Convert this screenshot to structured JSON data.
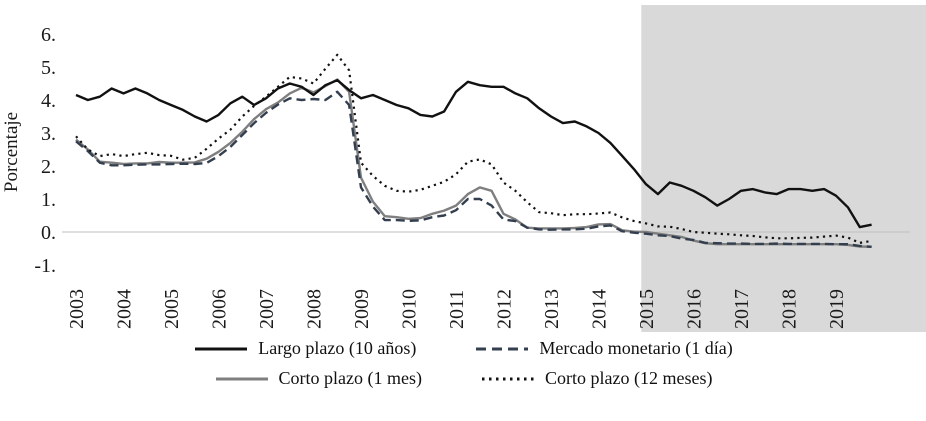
{
  "chart_data": {
    "type": "line",
    "title": "",
    "ylabel": "Porcentaje",
    "x_start": 2003,
    "x_step": 0.25,
    "ylim": [
      -1,
      6
    ],
    "grid": "zero-line-only",
    "y_ticks": [
      "6.",
      "5.",
      "4.",
      "3.",
      "2.",
      "1.",
      "0.",
      "-1."
    ],
    "y_tick_values": [
      6,
      5,
      4,
      3,
      2,
      1,
      0,
      -1
    ],
    "x_tick_labels": [
      "2003",
      "2004",
      "2005",
      "2006",
      "2007",
      "2008",
      "2009",
      "2010",
      "2011",
      "2012",
      "2013",
      "2014",
      "2015",
      "2016",
      "2017",
      "2018",
      "2019"
    ],
    "shaded_region": {
      "from": 2014.9,
      "to_edge": true,
      "color": "#d9d9d9"
    },
    "colors": {
      "gridline": "#bfbfbf",
      "text": "#1a1a1a"
    },
    "legend": {
      "position": "bottom",
      "rows": [
        [
          0,
          1
        ],
        [
          2,
          3
        ]
      ]
    },
    "series": [
      {
        "id": "largo-plazo-10a",
        "name": "Largo plazo (10 años)",
        "style": "solid",
        "color": "#111111",
        "values": [
          4.15,
          4.0,
          4.1,
          4.35,
          4.2,
          4.35,
          4.2,
          4.0,
          3.85,
          3.7,
          3.5,
          3.35,
          3.55,
          3.9,
          4.1,
          3.85,
          4.05,
          4.35,
          4.5,
          4.4,
          4.15,
          4.45,
          4.6,
          4.3,
          4.05,
          4.15,
          4.0,
          3.85,
          3.75,
          3.55,
          3.5,
          3.65,
          4.25,
          4.55,
          4.45,
          4.4,
          4.4,
          4.2,
          4.05,
          3.75,
          3.5,
          3.3,
          3.35,
          3.2,
          3.0,
          2.7,
          2.3,
          1.9,
          1.45,
          1.15,
          1.5,
          1.4,
          1.25,
          1.05,
          0.8,
          1.0,
          1.25,
          1.3,
          1.2,
          1.15,
          1.3,
          1.3,
          1.25,
          1.3,
          1.1,
          0.75,
          0.15,
          0.22
        ]
      },
      {
        "id": "mercado-monetario-1d",
        "name": "Mercado monetario (1 día)",
        "style": "dashed",
        "color": "#333f4f",
        "values": [
          2.75,
          2.45,
          2.1,
          2.02,
          2.02,
          2.04,
          2.05,
          2.05,
          2.06,
          2.07,
          2.06,
          2.09,
          2.3,
          2.58,
          2.94,
          3.3,
          3.61,
          3.86,
          4.05,
          4.0,
          4.03,
          4.0,
          4.25,
          3.85,
          1.35,
          0.77,
          0.36,
          0.36,
          0.34,
          0.35,
          0.45,
          0.5,
          0.66,
          1.0,
          1.0,
          0.8,
          0.38,
          0.33,
          0.13,
          0.08,
          0.07,
          0.08,
          0.08,
          0.1,
          0.17,
          0.2,
          0.02,
          -0.02,
          -0.05,
          -0.1,
          -0.12,
          -0.2,
          -0.24,
          -0.33,
          -0.34,
          -0.35,
          -0.35,
          -0.36,
          -0.36,
          -0.35,
          -0.36,
          -0.36,
          -0.36,
          -0.36,
          -0.37,
          -0.37,
          -0.42,
          -0.45
        ]
      },
      {
        "id": "corto-plazo-1m",
        "name": "Corto plazo (1 mes)",
        "style": "solid",
        "color": "#7f7f7f",
        "values": [
          2.8,
          2.5,
          2.13,
          2.1,
          2.06,
          2.08,
          2.08,
          2.12,
          2.1,
          2.1,
          2.11,
          2.22,
          2.43,
          2.7,
          3.04,
          3.42,
          3.72,
          3.92,
          4.2,
          4.37,
          4.23,
          4.42,
          4.62,
          4.25,
          1.65,
          0.92,
          0.48,
          0.45,
          0.4,
          0.42,
          0.55,
          0.65,
          0.8,
          1.15,
          1.35,
          1.25,
          0.55,
          0.38,
          0.13,
          0.11,
          0.11,
          0.11,
          0.12,
          0.15,
          0.23,
          0.24,
          0.05,
          0.01,
          0.0,
          -0.05,
          -0.1,
          -0.15,
          -0.26,
          -0.34,
          -0.37,
          -0.37,
          -0.37,
          -0.37,
          -0.37,
          -0.37,
          -0.37,
          -0.37,
          -0.37,
          -0.37,
          -0.37,
          -0.39,
          -0.44,
          -0.45
        ]
      },
      {
        "id": "corto-plazo-12m",
        "name": "Corto plazo (12 meses)",
        "style": "dotted",
        "color": "#111111",
        "values": [
          2.9,
          2.5,
          2.3,
          2.36,
          2.3,
          2.36,
          2.4,
          2.33,
          2.31,
          2.19,
          2.25,
          2.52,
          2.83,
          3.1,
          3.5,
          3.82,
          4.1,
          4.4,
          4.7,
          4.65,
          4.5,
          4.95,
          5.37,
          4.9,
          2.1,
          1.7,
          1.4,
          1.25,
          1.22,
          1.28,
          1.4,
          1.52,
          1.75,
          2.13,
          2.2,
          2.05,
          1.5,
          1.25,
          0.9,
          0.6,
          0.57,
          0.51,
          0.54,
          0.54,
          0.56,
          0.59,
          0.44,
          0.33,
          0.26,
          0.17,
          0.16,
          0.09,
          0.0,
          -0.02,
          -0.05,
          -0.07,
          -0.1,
          -0.12,
          -0.16,
          -0.19,
          -0.19,
          -0.18,
          -0.17,
          -0.14,
          -0.11,
          -0.17,
          -0.33,
          -0.27
        ]
      }
    ]
  }
}
